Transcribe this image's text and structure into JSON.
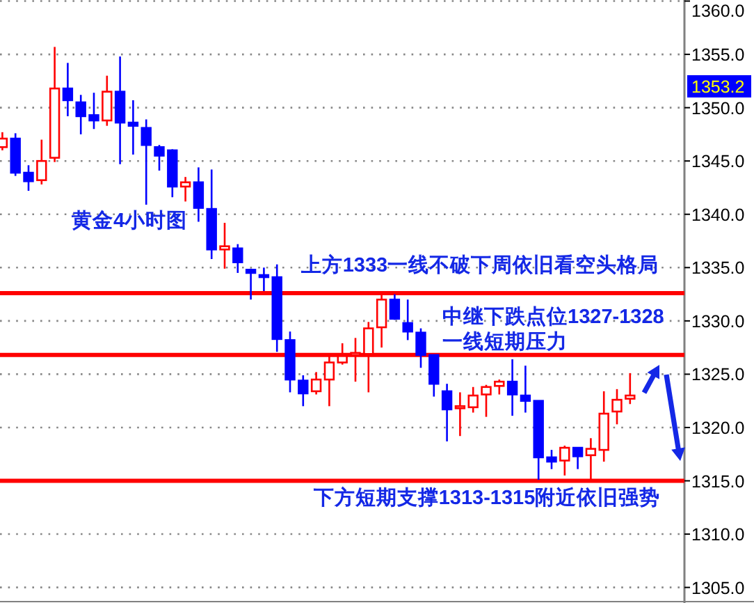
{
  "chart_data": {
    "type": "candlestick",
    "categories": [
      null,
      null,
      null,
      null,
      null,
      null,
      null,
      null,
      null,
      null,
      null,
      null,
      null,
      null,
      null,
      null,
      null,
      null,
      null,
      null,
      null,
      null,
      null,
      null,
      null,
      null,
      null,
      null,
      null,
      null,
      null,
      null,
      null,
      null,
      null,
      null,
      null,
      null,
      null,
      null,
      null,
      null,
      null,
      null,
      null,
      null,
      null,
      null,
      null
    ],
    "ohlc": [
      [
        1346.3,
        1347.7,
        1346.0,
        1347.1
      ],
      [
        1347.1,
        1347.6,
        1343.6,
        1343.9
      ],
      [
        1343.9,
        1344.6,
        1342.2,
        1343.1
      ],
      [
        1343.2,
        1347.0,
        1342.8,
        1345.0
      ],
      [
        1345.3,
        1355.7,
        1344.9,
        1351.8
      ],
      [
        1351.8,
        1354.2,
        1349.2,
        1350.7
      ],
      [
        1350.5,
        1351.2,
        1347.5,
        1349.2
      ],
      [
        1349.3,
        1351.4,
        1348.0,
        1348.8
      ],
      [
        1348.8,
        1353.0,
        1348.3,
        1351.5
      ],
      [
        1351.5,
        1354.8,
        1344.7,
        1348.6
      ],
      [
        1348.6,
        1350.7,
        1345.6,
        1348.3
      ],
      [
        1348.1,
        1348.9,
        1340.9,
        1346.5
      ],
      [
        1346.3,
        1346.5,
        1344.1,
        1345.5
      ],
      [
        1346.0,
        1346.1,
        1341.6,
        1342.6
      ],
      [
        1342.6,
        1343.5,
        1341.2,
        1343.0
      ],
      [
        1343.0,
        1344.4,
        1339.3,
        1340.6
      ],
      [
        1340.5,
        1344.2,
        1335.8,
        1336.7
      ],
      [
        1336.7,
        1339.2,
        1334.9,
        1337.0
      ],
      [
        1336.8,
        1337.2,
        1334.5,
        1335.5
      ],
      [
        1334.8,
        1334.9,
        1332.0,
        1334.5
      ],
      [
        1334.3,
        1335.0,
        1332.8,
        1334.2
      ],
      [
        1334.1,
        1335.3,
        1327.1,
        1328.3
      ],
      [
        1328.2,
        1329.0,
        1323.3,
        1324.5
      ],
      [
        1324.4,
        1324.9,
        1322.0,
        1323.2
      ],
      [
        1323.4,
        1325.2,
        1323.1,
        1324.5
      ],
      [
        1324.5,
        1326.8,
        1322.0,
        1326.1
      ],
      [
        1326.1,
        1327.9,
        1325.9,
        1326.7
      ],
      [
        1326.9,
        1328.4,
        1324.3,
        1327.0
      ],
      [
        1326.9,
        1329.9,
        1323.3,
        1329.3
      ],
      [
        1329.4,
        1332.5,
        1327.5,
        1332.0
      ],
      [
        1332.0,
        1332.5,
        1330.1,
        1330.2
      ],
      [
        1329.8,
        1332.0,
        1328.2,
        1329.0
      ],
      [
        1328.9,
        1329.3,
        1325.6,
        1326.8
      ],
      [
        1326.8,
        1326.8,
        1322.9,
        1324.1
      ],
      [
        1323.4,
        1324.1,
        1318.7,
        1321.7
      ],
      [
        1321.9,
        1323.3,
        1319.2,
        1322.0
      ],
      [
        1321.9,
        1323.8,
        1321.4,
        1323.0
      ],
      [
        1323.1,
        1324.0,
        1321.0,
        1323.8
      ],
      [
        1323.9,
        1324.5,
        1323.1,
        1324.3
      ],
      [
        1324.3,
        1326.4,
        1321.1,
        1323.1
      ],
      [
        1323.0,
        1325.8,
        1321.4,
        1322.5
      ],
      [
        1322.5,
        1322.5,
        1315.1,
        1317.2
      ],
      [
        1317.2,
        1317.9,
        1316.1,
        1316.8
      ],
      [
        1316.9,
        1318.3,
        1315.5,
        1318.1
      ],
      [
        1318.1,
        1318.1,
        1316.1,
        1317.3
      ],
      [
        1317.4,
        1319.0,
        1315.1,
        1318.0
      ],
      [
        1317.9,
        1323.4,
        1316.8,
        1321.3
      ],
      [
        1321.5,
        1323.6,
        1320.3,
        1322.6
      ],
      [
        1322.7,
        1325.1,
        1322.2,
        1323.0
      ]
    ],
    "colors": [
      "#ff0000",
      "#0000ff",
      "#0000ff",
      "#ff0000",
      "#ff0000",
      "#0000ff",
      "#0000ff",
      "#0000ff",
      "#ff0000",
      "#0000ff",
      "#0000ff",
      "#0000ff",
      "#0000ff",
      "#0000ff",
      "#ff0000",
      "#0000ff",
      "#0000ff",
      "#ff0000",
      "#0000ff",
      "#0000ff",
      "#0000ff",
      "#0000ff",
      "#0000ff",
      "#0000ff",
      "#ff0000",
      "#ff0000",
      "#ff0000",
      "#ff0000",
      "#ff0000",
      "#ff0000",
      "#0000ff",
      "#0000ff",
      "#0000ff",
      "#0000ff",
      "#0000ff",
      "#ff0000",
      "#ff0000",
      "#ff0000",
      "#ff0000",
      "#0000ff",
      "#0000ff",
      "#0000ff",
      "#0000ff",
      "#ff0000",
      "#0000ff",
      "#ff0000",
      "#ff0000",
      "#ff0000",
      "#ff0000"
    ],
    "ylim": [
      1303.8,
      1360.1
    ],
    "yticks": [
      {
        "value": 1305,
        "label": "1305.0"
      },
      {
        "value": 1310,
        "label": "1310.0"
      },
      {
        "value": 1315,
        "label": "1315.0"
      },
      {
        "value": 1320,
        "label": "1320.0"
      },
      {
        "value": 1325,
        "label": "1325.0"
      },
      {
        "value": 1330,
        "label": "1330.0"
      },
      {
        "value": 1335,
        "label": "1335.0"
      },
      {
        "value": 1340,
        "label": "1340.0"
      },
      {
        "value": 1345,
        "label": "1345.0"
      },
      {
        "value": 1350,
        "label": "1350.0"
      },
      {
        "value": 1355,
        "label": "1355.0"
      },
      {
        "value": 1360,
        "label": "1360.0"
      }
    ],
    "grid": "y",
    "ref_lines": [
      {
        "axis": "y",
        "value": 1332.6,
        "color": "#ff0000"
      },
      {
        "axis": "y",
        "value": 1326.8,
        "color": "#ff0000"
      },
      {
        "axis": "y",
        "value": 1315.0,
        "color": "#ff0000"
      }
    ],
    "annotations": [
      "黄金4小时图",
      "上方1333一线不破下周依旧看空头格局",
      "中继下跌点位1327-1328一线短期压力",
      "下方短期支撑1313-1315附近依旧强势",
      "1353.2"
    ]
  }
}
